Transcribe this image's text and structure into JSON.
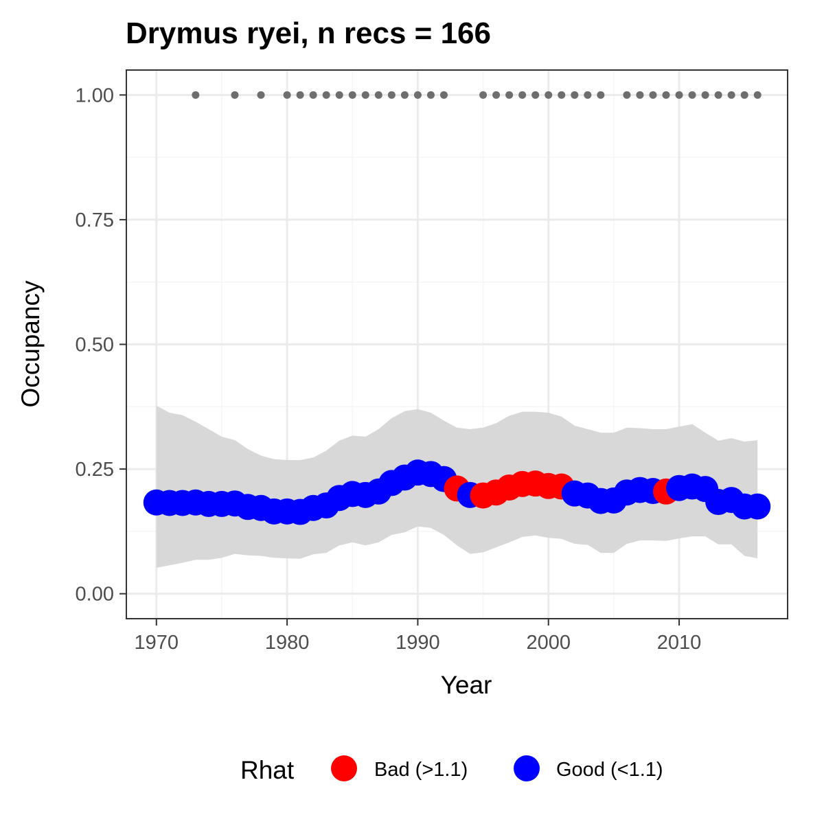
{
  "chart_data": {
    "type": "line",
    "title": "Drymus ryei, n recs = 166",
    "xlabel": "Year",
    "ylabel": "Occupancy",
    "xlim": [
      1967.7,
      2018.3
    ],
    "ylim": [
      -0.05,
      1.05
    ],
    "x_ticks": [
      1970,
      1980,
      1990,
      2000,
      2010
    ],
    "y_ticks": [
      0,
      0.25,
      0.5,
      0.75,
      1.0
    ],
    "y_tick_labels": [
      "0.00",
      "0.25",
      "0.50",
      "0.75",
      "1.00"
    ],
    "grid": true,
    "colors": {
      "bad": "#ff0000",
      "good": "#0000ff",
      "ribbon": "#d6d6d6",
      "record_dot": "#6e6e6e",
      "panel_border": "#333333",
      "grid_major": "#ebebeb",
      "grid_minor": "#f5f5f5"
    },
    "legend": {
      "title": "Rhat",
      "position": "bottom",
      "entries": [
        {
          "key": "bad",
          "label": "Bad (>1.1)"
        },
        {
          "key": "good",
          "label": "Good (<1.1)"
        }
      ]
    },
    "series": [
      {
        "name": "mean_occupancy",
        "x": [
          1970,
          1971,
          1972,
          1973,
          1974,
          1975,
          1976,
          1977,
          1978,
          1979,
          1980,
          1981,
          1982,
          1983,
          1984,
          1985,
          1986,
          1987,
          1988,
          1989,
          1990,
          1991,
          1992,
          1993,
          1994,
          1995,
          1996,
          1997,
          1998,
          1999,
          2000,
          2001,
          2002,
          2003,
          2004,
          2005,
          2006,
          2007,
          2008,
          2009,
          2010,
          2011,
          2012,
          2013,
          2014,
          2015,
          2016
        ],
        "y": [
          0.183,
          0.182,
          0.182,
          0.183,
          0.18,
          0.18,
          0.181,
          0.174,
          0.172,
          0.165,
          0.165,
          0.164,
          0.172,
          0.177,
          0.192,
          0.2,
          0.198,
          0.205,
          0.222,
          0.233,
          0.243,
          0.24,
          0.23,
          0.211,
          0.198,
          0.197,
          0.203,
          0.213,
          0.22,
          0.221,
          0.216,
          0.215,
          0.201,
          0.197,
          0.186,
          0.187,
          0.203,
          0.208,
          0.206,
          0.205,
          0.212,
          0.215,
          0.21,
          0.184,
          0.188,
          0.175,
          0.175
        ],
        "lower": [
          0.052,
          0.057,
          0.062,
          0.068,
          0.068,
          0.072,
          0.08,
          0.077,
          0.076,
          0.072,
          0.071,
          0.07,
          0.079,
          0.082,
          0.097,
          0.103,
          0.097,
          0.103,
          0.118,
          0.123,
          0.135,
          0.132,
          0.118,
          0.097,
          0.08,
          0.083,
          0.093,
          0.103,
          0.114,
          0.117,
          0.112,
          0.11,
          0.1,
          0.098,
          0.082,
          0.082,
          0.1,
          0.107,
          0.107,
          0.106,
          0.111,
          0.115,
          0.115,
          0.099,
          0.099,
          0.076,
          0.071
        ],
        "upper": [
          0.377,
          0.363,
          0.358,
          0.345,
          0.33,
          0.315,
          0.308,
          0.29,
          0.277,
          0.27,
          0.268,
          0.268,
          0.273,
          0.287,
          0.307,
          0.317,
          0.315,
          0.33,
          0.352,
          0.366,
          0.37,
          0.363,
          0.347,
          0.333,
          0.33,
          0.333,
          0.342,
          0.357,
          0.365,
          0.365,
          0.363,
          0.355,
          0.337,
          0.33,
          0.323,
          0.323,
          0.333,
          0.332,
          0.33,
          0.33,
          0.335,
          0.34,
          0.323,
          0.307,
          0.312,
          0.305,
          0.308
        ],
        "rhat": [
          "good",
          "good",
          "good",
          "good",
          "good",
          "good",
          "good",
          "good",
          "good",
          "good",
          "good",
          "good",
          "good",
          "good",
          "good",
          "good",
          "good",
          "good",
          "good",
          "good",
          "good",
          "good",
          "good",
          "bad",
          "good",
          "bad",
          "bad",
          "bad",
          "bad",
          "bad",
          "bad",
          "bad",
          "good",
          "good",
          "good",
          "good",
          "good",
          "good",
          "good",
          "bad",
          "good",
          "good",
          "good",
          "good",
          "good",
          "good",
          "good"
        ]
      },
      {
        "name": "years_with_records",
        "y_value": 1.0,
        "x": [
          1973,
          1976,
          1978,
          1980,
          1981,
          1982,
          1983,
          1984,
          1985,
          1986,
          1987,
          1988,
          1989,
          1990,
          1991,
          1992,
          1995,
          1996,
          1997,
          1998,
          1999,
          2000,
          2001,
          2002,
          2003,
          2004,
          2006,
          2007,
          2008,
          2009,
          2010,
          2011,
          2012,
          2013,
          2014,
          2015,
          2016
        ]
      }
    ]
  }
}
